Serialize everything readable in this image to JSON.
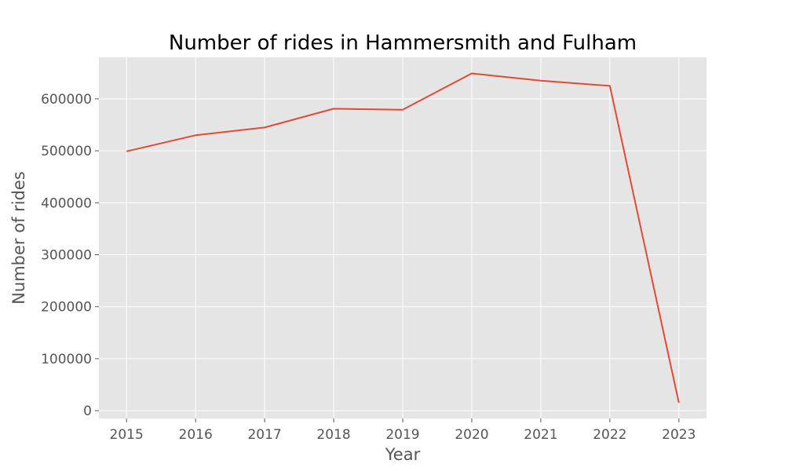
{
  "chart_data": {
    "type": "line",
    "title": "Number of rides in Hammersmith and Fulham",
    "xlabel": "Year",
    "ylabel": "Number of rides",
    "x": [
      2015,
      2016,
      2017,
      2018,
      2019,
      2020,
      2021,
      2022,
      2023
    ],
    "x_tick_labels": [
      "2015",
      "2016",
      "2017",
      "2018",
      "2019",
      "2020",
      "2021",
      "2022",
      "2023"
    ],
    "y_ticks": [
      0,
      100000,
      200000,
      300000,
      400000,
      500000,
      600000
    ],
    "y_tick_labels": [
      "0",
      "100000",
      "200000",
      "300000",
      "400000",
      "500000",
      "600000"
    ],
    "series": [
      {
        "values": [
          499000,
          530000,
          545000,
          581000,
          579000,
          649000,
          635000,
          625000,
          15000
        ],
        "color": "#E24A33"
      }
    ],
    "xlim": [
      2014.6,
      2023.4
    ],
    "ylim": [
      -15000,
      680000
    ],
    "grid": true,
    "background": "#E5E5E5",
    "grid_color": "#FFFFFF",
    "legend": "none"
  }
}
